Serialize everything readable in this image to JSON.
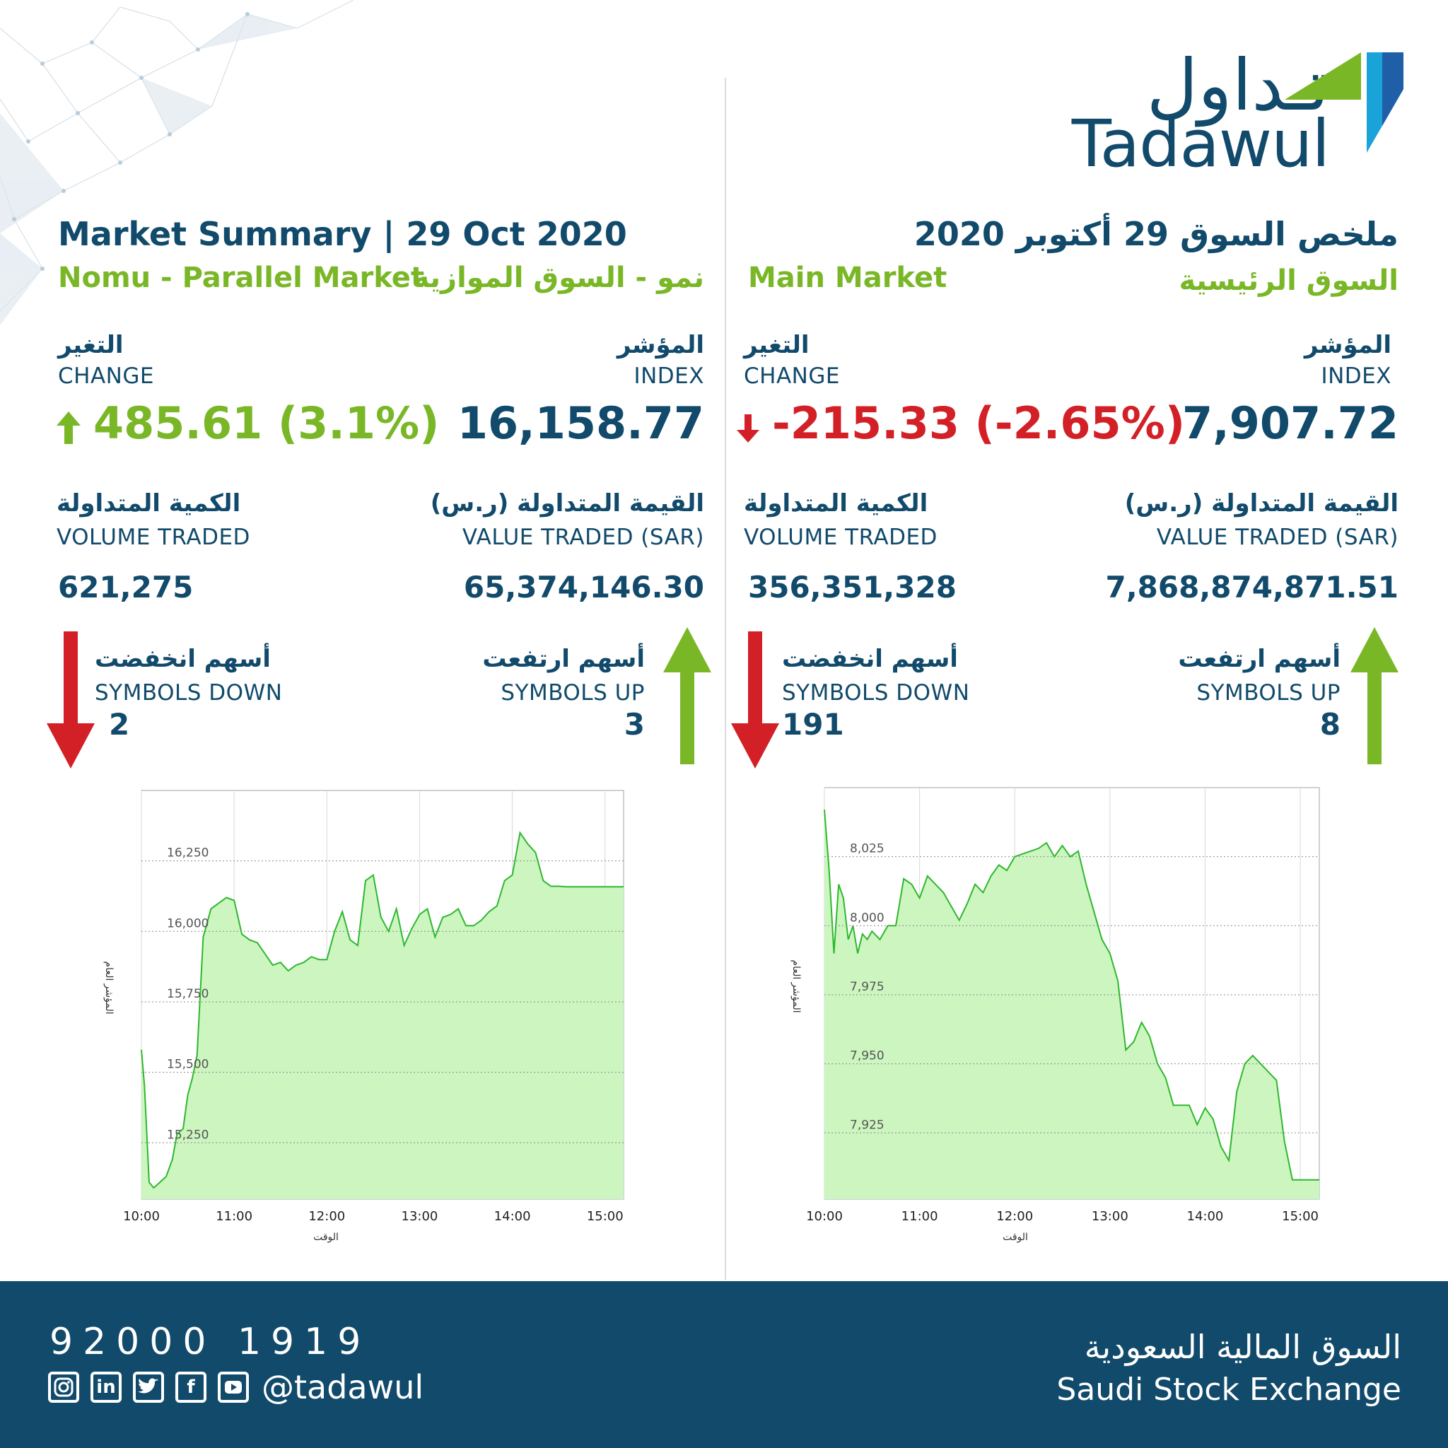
{
  "logo": {
    "arabic": "تـداول",
    "english": "Tadawul"
  },
  "left": {
    "title": "Market Summary | 29 Oct 2020",
    "market_en": "Nomu - Parallel Market",
    "market_ar": "نمو - السوق الموازية",
    "change_ar": "التغير",
    "change_en": "CHANGE",
    "change_value": "485.61 (3.1%)",
    "change_direction": "up",
    "index_ar": "المؤشر",
    "index_en": "INDEX",
    "index_value": "16,158.77",
    "volume_ar": "الكمية المتداولة",
    "volume_en": "VOLUME TRADED",
    "volume_value": "621,275",
    "value_ar": "القيمة المتداولة (ر.س)",
    "value_en": "VALUE TRADED (SAR)",
    "value_value": "65,374,146.30",
    "down_ar": "أسهم انخفضت",
    "down_en": "SYMBOLS DOWN",
    "down_value": "2",
    "up_ar": "أسهم ارتفعت",
    "up_en": "SYMBOLS UP",
    "up_value": "3"
  },
  "right": {
    "title": "ملخص السوق 29 أكتوبر 2020",
    "market_en": "Main Market",
    "market_ar": "السوق الرئيسية",
    "change_ar": "التغير",
    "change_en": "CHANGE",
    "change_value": "-215.33 (-2.65%)",
    "change_direction": "down",
    "index_ar": "المؤشر",
    "index_en": "INDEX",
    "index_value": "7,907.72",
    "volume_ar": "الكمية المتداولة",
    "volume_en": "VOLUME TRADED",
    "volume_value": "356,351,328",
    "value_ar": "القيمة المتداولة (ر.س)",
    "value_en": "VALUE TRADED (SAR)",
    "value_value": "7,868,874,871.51",
    "down_ar": "أسهم انخفضت",
    "down_en": "SYMBOLS DOWN",
    "down_value": "191",
    "up_ar": "أسهم ارتفعت",
    "up_en": "SYMBOLS UP",
    "up_value": "8"
  },
  "chart_data": [
    {
      "type": "area",
      "market": "Nomu - Parallel Market",
      "xlabel": "الوقت",
      "ylabel": "المؤشر العام",
      "xticks": [
        "10:00",
        "11:00",
        "12:00",
        "13:00",
        "14:00",
        "15:00"
      ],
      "yticks": [
        15250,
        15500,
        15750,
        16000,
        16250
      ],
      "ylim": [
        15050,
        16500
      ],
      "xlim": [
        "10:00",
        "15:12"
      ],
      "grid": true,
      "fill_color": "#ccf5c0",
      "line_color": "#2eb82e",
      "series": [
        {
          "x": [
            "10:00",
            "10:02",
            "10:05",
            "10:08",
            "10:12",
            "10:16",
            "10:20",
            "10:23",
            "10:27",
            "10:30",
            "10:33",
            "10:36",
            "10:40",
            "10:45",
            "10:50",
            "10:55",
            "11:00",
            "11:05",
            "11:10",
            "11:15",
            "11:20",
            "11:25",
            "11:30",
            "11:35",
            "11:40",
            "11:45",
            "11:50",
            "11:55",
            "12:00",
            "12:05",
            "12:10",
            "12:15",
            "12:20",
            "12:25",
            "12:30",
            "12:35",
            "12:40",
            "12:45",
            "12:50",
            "12:55",
            "13:00",
            "13:05",
            "13:10",
            "13:15",
            "13:20",
            "13:25",
            "13:30",
            "13:35",
            "13:40",
            "13:45",
            "13:50",
            "13:55",
            "14:00",
            "14:05",
            "14:10",
            "14:15",
            "14:20",
            "14:25",
            "14:30",
            "14:35",
            "14:40",
            "14:45",
            "14:50",
            "14:55",
            "15:00",
            "15:05",
            "15:12"
          ],
          "y": [
            15580,
            15450,
            15110,
            15090,
            15110,
            15130,
            15190,
            15280,
            15300,
            15420,
            15480,
            15560,
            15980,
            16080,
            16100,
            16120,
            16110,
            15990,
            15970,
            15960,
            15920,
            15880,
            15890,
            15860,
            15880,
            15890,
            15910,
            15900,
            15900,
            16000,
            16070,
            15970,
            15950,
            16180,
            16200,
            16050,
            16000,
            16080,
            15950,
            16010,
            16060,
            16080,
            15980,
            16050,
            16060,
            16080,
            16020,
            16020,
            16040,
            16070,
            16090,
            16180,
            16200,
            16350,
            16310,
            16280,
            16180,
            16160,
            16160,
            16158,
            16158,
            16158,
            16158,
            16158,
            16158,
            16158,
            16158
          ]
        }
      ]
    },
    {
      "type": "area",
      "market": "Main Market",
      "xlabel": "الوقت",
      "ylabel": "المؤشر العام",
      "xticks": [
        "10:00",
        "11:00",
        "12:00",
        "13:00",
        "14:00",
        "15:00"
      ],
      "yticks": [
        7925,
        7950,
        7975,
        8000,
        8025
      ],
      "ylim": [
        7901,
        8050
      ],
      "xlim": [
        "10:00",
        "15:12"
      ],
      "grid": true,
      "fill_color": "#ccf5c0",
      "line_color": "#2eb82e",
      "series": [
        {
          "x": [
            "10:00",
            "10:03",
            "10:06",
            "10:09",
            "10:12",
            "10:15",
            "10:18",
            "10:21",
            "10:24",
            "10:27",
            "10:30",
            "10:35",
            "10:40",
            "10:45",
            "10:50",
            "10:55",
            "11:00",
            "11:05",
            "11:10",
            "11:15",
            "11:20",
            "11:25",
            "11:30",
            "11:35",
            "11:40",
            "11:45",
            "11:50",
            "11:55",
            "12:00",
            "12:05",
            "12:10",
            "12:15",
            "12:20",
            "12:25",
            "12:30",
            "12:35",
            "12:40",
            "12:45",
            "12:50",
            "12:55",
            "13:00",
            "13:05",
            "13:10",
            "13:15",
            "13:20",
            "13:25",
            "13:30",
            "13:35",
            "13:40",
            "13:45",
            "13:50",
            "13:55",
            "14:00",
            "14:05",
            "14:10",
            "14:15",
            "14:20",
            "14:25",
            "14:30",
            "14:35",
            "14:40",
            "14:45",
            "14:50",
            "14:55",
            "15:00",
            "15:03",
            "15:05",
            "15:12"
          ],
          "y": [
            8042,
            8020,
            7990,
            8015,
            8010,
            7995,
            8000,
            7990,
            7997,
            7995,
            7998,
            7995,
            8000,
            8000,
            8017,
            8015,
            8010,
            8018,
            8015,
            8012,
            8007,
            8002,
            8008,
            8015,
            8012,
            8018,
            8022,
            8020,
            8025,
            8026,
            8027,
            8028,
            8030,
            8025,
            8029,
            8025,
            8027,
            8015,
            8005,
            7995,
            7990,
            7980,
            7955,
            7958,
            7965,
            7960,
            7950,
            7945,
            7935,
            7935,
            7935,
            7928,
            7934,
            7930,
            7920,
            7915,
            7940,
            7950,
            7953,
            7950,
            7947,
            7944,
            7922,
            7908,
            7908,
            7908,
            7908,
            7908
          ]
        }
      ]
    }
  ],
  "footer": {
    "phone": "92000 1919",
    "handle": "@tadawul",
    "exchange_ar": "السوق المالية السعودية",
    "exchange_en": "Saudi Stock Exchange",
    "social_icons": [
      "instagram-icon",
      "linkedin-icon",
      "twitter-icon",
      "facebook-icon",
      "youtube-icon"
    ]
  },
  "colors": {
    "navy": "#114a6b",
    "green": "#7ab727",
    "red": "#d32027",
    "chart_fill": "#ccf5c0",
    "chart_line": "#2eb82e"
  }
}
